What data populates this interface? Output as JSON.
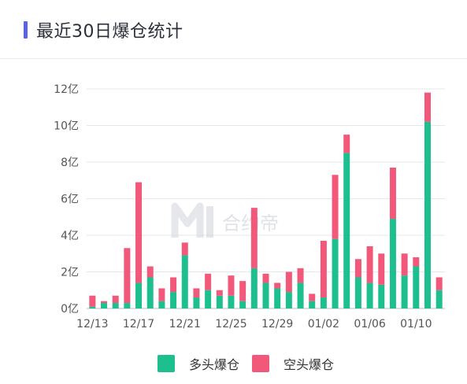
{
  "header": {
    "title": "最近30日爆仓统计"
  },
  "colors": {
    "accent": "#5a63e6",
    "long": "#1dbf8f",
    "short": "#f2587a"
  },
  "watermark": {
    "text": "合约帝"
  },
  "chart_data": {
    "type": "bar",
    "stacked": true,
    "categories": [
      "12/13",
      "12/14",
      "12/15",
      "12/16",
      "12/17",
      "12/18",
      "12/19",
      "12/20",
      "12/21",
      "12/22",
      "12/23",
      "12/24",
      "12/25",
      "12/26",
      "12/27",
      "12/28",
      "12/29",
      "12/30",
      "12/31",
      "01/01",
      "01/02",
      "01/03",
      "01/04",
      "01/05",
      "01/06",
      "01/07",
      "01/08",
      "01/09",
      "01/10",
      "01/11",
      "01/12"
    ],
    "tick_labels": [
      "12/13",
      "12/17",
      "12/21",
      "12/25",
      "12/29",
      "01/02",
      "01/06",
      "01/10"
    ],
    "tick_every": 4,
    "series": [
      {
        "name": "多头爆仓",
        "color": "#1dbf8f",
        "values": [
          0.1,
          0.3,
          0.3,
          0.3,
          1.4,
          1.7,
          0.4,
          0.9,
          2.9,
          0.6,
          1.0,
          0.7,
          0.7,
          0.4,
          2.2,
          1.4,
          1.1,
          0.9,
          1.4,
          0.4,
          0.6,
          3.8,
          8.5,
          1.7,
          1.4,
          1.3,
          4.9,
          1.8,
          2.3,
          10.2,
          1.0
        ]
      },
      {
        "name": "空头爆仓",
        "color": "#f2587a",
        "values": [
          0.6,
          0.1,
          0.4,
          3.0,
          5.5,
          0.6,
          0.7,
          0.8,
          0.7,
          0.5,
          0.9,
          0.3,
          1.1,
          1.1,
          3.3,
          0.5,
          0.3,
          1.1,
          0.8,
          0.4,
          3.1,
          3.5,
          1.0,
          1.0,
          2.0,
          1.7,
          2.8,
          1.2,
          0.5,
          1.6,
          0.7
        ]
      }
    ],
    "yticks": [
      "0亿",
      "2亿",
      "4亿",
      "6亿",
      "8亿",
      "10亿",
      "12亿"
    ],
    "ylim": [
      0,
      12
    ],
    "grid": true,
    "legend_position": "bottom"
  }
}
